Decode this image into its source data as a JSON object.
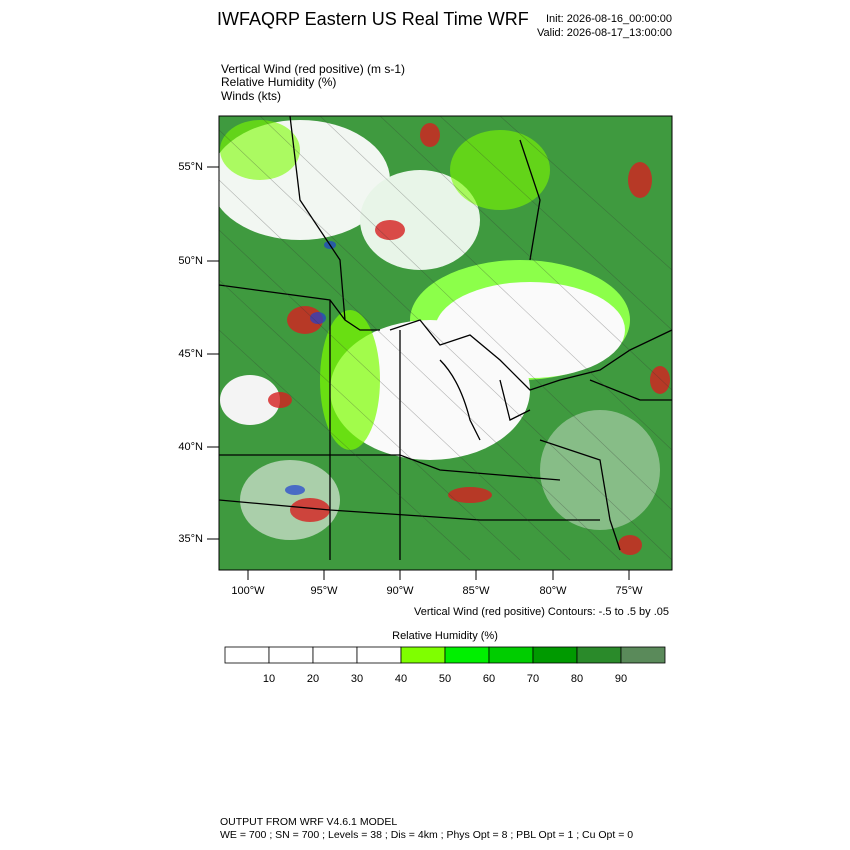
{
  "header": {
    "title": "IWFAQRP Eastern US Real Time WRF",
    "init": "Init: 2026-08-16_00:00:00",
    "valid": "Valid: 2026-08-17_13:00:00"
  },
  "fields": [
    "Vertical Wind (red positive)   (m s-1)",
    "Relative Humidity   (%)",
    "Winds   (kts)"
  ],
  "axes": {
    "lat_labels": [
      "55°N",
      "50°N",
      "45°N",
      "40°N",
      "35°N"
    ],
    "lon_labels": [
      "100°W",
      "95°W",
      "90°W",
      "85°W",
      "80°W",
      "75°W"
    ]
  },
  "contour_note": "Vertical Wind (red positive) Contours: -.5 to .5 by .05",
  "colorbar": {
    "title": "Relative Humidity  (%)",
    "ticks": [
      10,
      20,
      30,
      40,
      50,
      60,
      70,
      80,
      90
    ],
    "colors": [
      "#ffffff",
      "#ffffff",
      "#ffffff",
      "#ffffff",
      "#7fff00",
      "#00f000",
      "#00cd00",
      "#009a00",
      "#2a8a2a",
      "#5a8a5a"
    ]
  },
  "footer": [
    "OUTPUT FROM WRF V4.6.1 MODEL",
    "WE = 700 ; SN = 700 ; Levels = 38 ; Dis = 4km ; Phys Opt = 8 ; PBL Opt = 1 ; Cu Opt = 0"
  ]
}
